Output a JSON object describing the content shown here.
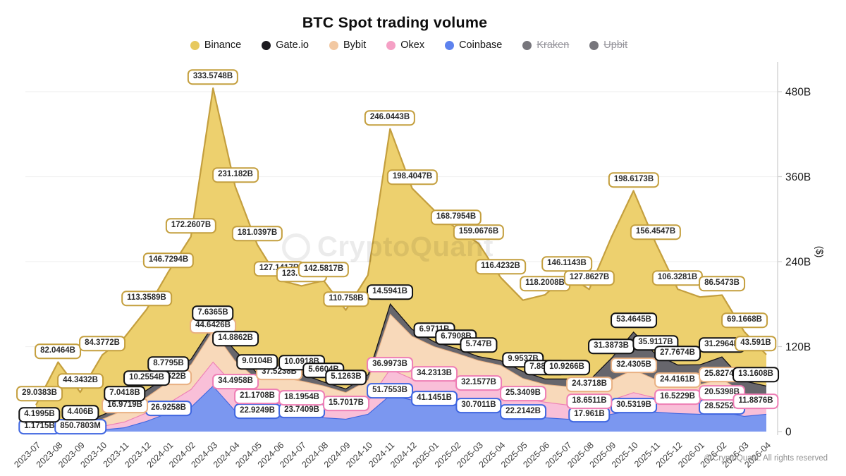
{
  "title": "BTC Spot trading volume",
  "watermark": "CryptoQuant",
  "copyright": "© CryptoQuant. All rights reserved",
  "legend": [
    {
      "label": "Binance",
      "color": "#e7c95f",
      "disabled": false
    },
    {
      "label": "Gate.io",
      "color": "#1b1a1f",
      "disabled": false
    },
    {
      "label": "Bybit",
      "color": "#f2c8a2",
      "disabled": false
    },
    {
      "label": "Okex",
      "color": "#f5a0c5",
      "disabled": false
    },
    {
      "label": "Coinbase",
      "color": "#5d82ee",
      "disabled": false
    },
    {
      "label": "Kraken",
      "color": "#77767c",
      "disabled": true
    },
    {
      "label": "Upbit",
      "color": "#77767c",
      "disabled": true
    }
  ],
  "y_axis": {
    "label": "($)",
    "ticks": [
      "0",
      "120B",
      "240B",
      "360B",
      "480B"
    ],
    "values": [
      0,
      120,
      240,
      360,
      480
    ],
    "max": 480
  },
  "x_axis": {
    "categories": [
      "2023-07",
      "2023-08",
      "2023-09",
      "2023-10",
      "2023-11",
      "2023-12",
      "2024-01",
      "2024-02",
      "2024-03",
      "2024-04",
      "2024-05",
      "2024-06",
      "2024-07",
      "2024-08",
      "2024-09",
      "2024-10",
      "2024-11",
      "2024-12",
      "2025-01",
      "2025-02",
      "2025-03",
      "2025-04",
      "2025-05",
      "2025-06",
      "2025-07",
      "2025-08",
      "2025-09",
      "2025-10",
      "2025-11",
      "2025-12",
      "2026-01",
      "2026-02",
      "2026-03",
      "2026-04"
    ]
  },
  "chart_data": {
    "type": "area",
    "stacked": true,
    "unit": "B (USD)",
    "grid": "horizontal",
    "legend_position": "top",
    "ylim": [
      0,
      480
    ],
    "x": [
      "2023-07",
      "2023-08",
      "2023-09",
      "2023-10",
      "2023-11",
      "2023-12",
      "2024-01",
      "2024-02",
      "2024-03",
      "2024-04",
      "2024-05",
      "2024-06",
      "2024-07",
      "2024-08",
      "2024-09",
      "2024-10",
      "2024-11",
      "2024-12",
      "2025-01",
      "2025-02",
      "2025-03",
      "2025-04",
      "2025-05",
      "2025-06",
      "2025-07",
      "2025-08",
      "2025-09",
      "2025-10",
      "2025-11",
      "2025-12",
      "2026-01",
      "2026-02",
      "2026-03",
      "2026-04"
    ],
    "note": "values in billions USD; unlabeled months estimated from pixel heights; series listed bottom-to-top of stack",
    "series": [
      {
        "name": "Coinbase",
        "fill": "#7b97f0",
        "stroke": "#3f66e0",
        "values": [
          1.1715,
          2,
          0.8508,
          3,
          6,
          15,
          26.9258,
          35,
          65,
          30,
          22.9249,
          22,
          23.7409,
          20,
          18,
          25,
          51.7553,
          45,
          41.1451,
          38,
          30.7011,
          32,
          22.2142,
          20,
          18,
          17.961,
          25,
          30.5319,
          28,
          26,
          25,
          28.5252,
          22,
          25
        ],
        "labels": {
          "0": "1.1715B",
          "2": "850.7803M",
          "6": "26.9258B",
          "10": "22.9249B",
          "12": "23.7409B",
          "16": "51.7553B",
          "18": "41.1451B",
          "20": "30.7011B",
          "22": "22.2142B",
          "25": "17.961B",
          "27": "30.5319B",
          "31": "28.5252B"
        }
      },
      {
        "name": "Okex",
        "fill": "#f9bfd8",
        "stroke": "#ee7eb5",
        "values": [
          1,
          3,
          2,
          5,
          8,
          12,
          14,
          25,
          34,
          34.4958,
          21.1708,
          18,
          18.1954,
          17,
          15.7017,
          18,
          36.9973,
          30,
          34.2313,
          33,
          32.1577,
          30,
          25.3409,
          22,
          20,
          18.6511,
          20,
          25,
          20,
          16.5229,
          18,
          20.5398,
          14,
          11.8876
        ],
        "labels": {
          "9": "34.4958B",
          "10": "21.1708B",
          "12": "18.1954B",
          "14": "15.7017B",
          "16": "36.9973B",
          "18": "34.2313B",
          "20": "32.1577B",
          "22": "25.3409B",
          "25": "18.6511B",
          "29": "16.5229B",
          "31": "20.5398B",
          "33": "11.8876B"
        }
      },
      {
        "name": "Bybit",
        "fill": "#f8d9ba",
        "stroke": "#e9b183",
        "values": [
          2,
          6,
          4,
          10,
          16.9719,
          22,
          30.0522,
          35,
          44.6426,
          36,
          30,
          37.5238,
          30,
          28,
          22,
          30,
          78,
          60,
          45,
          40,
          38,
          32,
          28,
          25,
          26,
          24.3718,
          28,
          32.4305,
          26,
          24.4161,
          24,
          25.8274,
          18,
          15
        ],
        "labels": {
          "4": "16.9719B",
          "6": "30.0522B",
          "8": "44.6426B",
          "11": "37.5238B",
          "25": "24.3718B",
          "27": "32.4305B",
          "29": "24.4161B",
          "31": "25.8274B"
        }
      },
      {
        "name": "Gate.io",
        "fill": "#67666c",
        "stroke": "#141217",
        "values": [
          4.1995,
          5,
          4.406,
          6,
          7.0418,
          10.2554,
          8.7795,
          8,
          7.6365,
          14.8862,
          9.0104,
          9,
          10.0918,
          5.6604,
          5.1263,
          8,
          14.5941,
          10,
          6.9711,
          6.7908,
          5.747,
          7,
          9.9537,
          7.8872,
          10.9266,
          12,
          31.3873,
          53.4645,
          35.9117,
          27.7674,
          28,
          31.2964,
          18,
          13.1608
        ],
        "labels": {
          "0": "4.1995B",
          "2": "4.406B",
          "4": "7.0418B",
          "5": "10.2554B",
          "6": "8.7795B",
          "8": "7.6365B",
          "9": "14.8862B",
          "10": "9.0104B",
          "12": "10.0918B",
          "13": "5.6604B",
          "14": "5.1263B",
          "16": "14.5941B",
          "18": "6.9711B",
          "19": "6.7908B",
          "20": "5.747B",
          "22": "9.9537B",
          "23": "7.8872B",
          "24": "10.9266B",
          "26": "31.3873B",
          "27": "53.4645B",
          "28": "35.9117B",
          "29": "27.7674B",
          "31": "31.2964B",
          "33": "13.1608B"
        }
      },
      {
        "name": "Binance",
        "fill": "#edd06e",
        "stroke": "#c49f3e",
        "values": [
          29.0383,
          82.0464,
          44.3432,
          84.3772,
          95,
          113.3589,
          146.7294,
          172.2607,
          333.5748,
          231.182,
          181.0397,
          127.1417,
          123.7056,
          142.5817,
          110.758,
          140,
          246.0443,
          198.4047,
          185,
          168.7954,
          159.0676,
          116.4232,
          100,
          118.2008,
          146.1143,
          127.8627,
          170,
          198.6173,
          156.4547,
          106.3281,
          95,
          86.5473,
          69.1668,
          43.591
        ],
        "labels": {
          "0": "29.0383B",
          "1": "82.0464B",
          "2": "44.3432B",
          "3": "84.3772B",
          "5": "113.3589B",
          "6": "146.7294B",
          "7": "172.2607B",
          "8": "333.5748B",
          "9": "231.182B",
          "10": "181.0397B",
          "11": "127.1417B",
          "12": "123.7056B",
          "13": "142.5817B",
          "14": "110.758B",
          "16": "246.0443B",
          "17": "198.4047B",
          "19": "168.7954B",
          "20": "159.0676B",
          "21": "116.4232B",
          "23": "118.2008B",
          "24": "146.1143B",
          "25": "127.8627B",
          "27": "198.6173B",
          "28": "156.4547B",
          "29": "106.3281B",
          "31": "86.5473B",
          "32": "69.1668B",
          "33": "43.591B"
        }
      }
    ]
  }
}
